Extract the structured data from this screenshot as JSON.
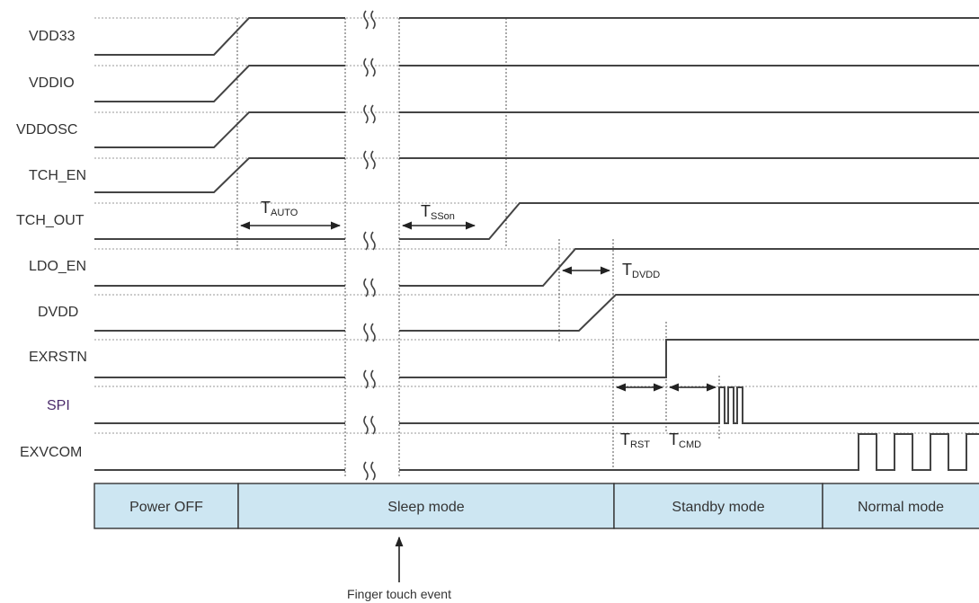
{
  "signals": [
    {
      "id": "vdd33",
      "label": "VDD33"
    },
    {
      "id": "vddio",
      "label": "VDDIO"
    },
    {
      "id": "vddosc",
      "label": "VDDOSC"
    },
    {
      "id": "tch_en",
      "label": "TCH_EN"
    },
    {
      "id": "tch_out",
      "label": "TCH_OUT"
    },
    {
      "id": "ldo_en",
      "label": "LDO_EN"
    },
    {
      "id": "dvdd",
      "label": "DVDD"
    },
    {
      "id": "exrstn",
      "label": "EXRSTN"
    },
    {
      "id": "spi",
      "label": "SPI"
    },
    {
      "id": "exvcom",
      "label": "EXVCOM"
    }
  ],
  "timings": [
    {
      "id": "t_auto",
      "main": "T",
      "sub": "AUTO"
    },
    {
      "id": "t_sson",
      "main": "T",
      "sub": "SSon"
    },
    {
      "id": "t_dvdd",
      "main": "T",
      "sub": "DVDD"
    },
    {
      "id": "t_rst",
      "main": "T",
      "sub": "RST"
    },
    {
      "id": "t_cmd",
      "main": "T",
      "sub": "CMD"
    }
  ],
  "modes": [
    {
      "id": "power_off",
      "label": "Power OFF"
    },
    {
      "id": "sleep",
      "label": "Sleep mode"
    },
    {
      "id": "standby",
      "label": "Standby mode"
    },
    {
      "id": "normal",
      "label": "Normal mode"
    }
  ],
  "event": {
    "label": "Finger touch event"
  },
  "colors": {
    "mode_fill": "#cde6f2",
    "signal_line": "#444444",
    "label_accent": "#4b2b6b"
  }
}
